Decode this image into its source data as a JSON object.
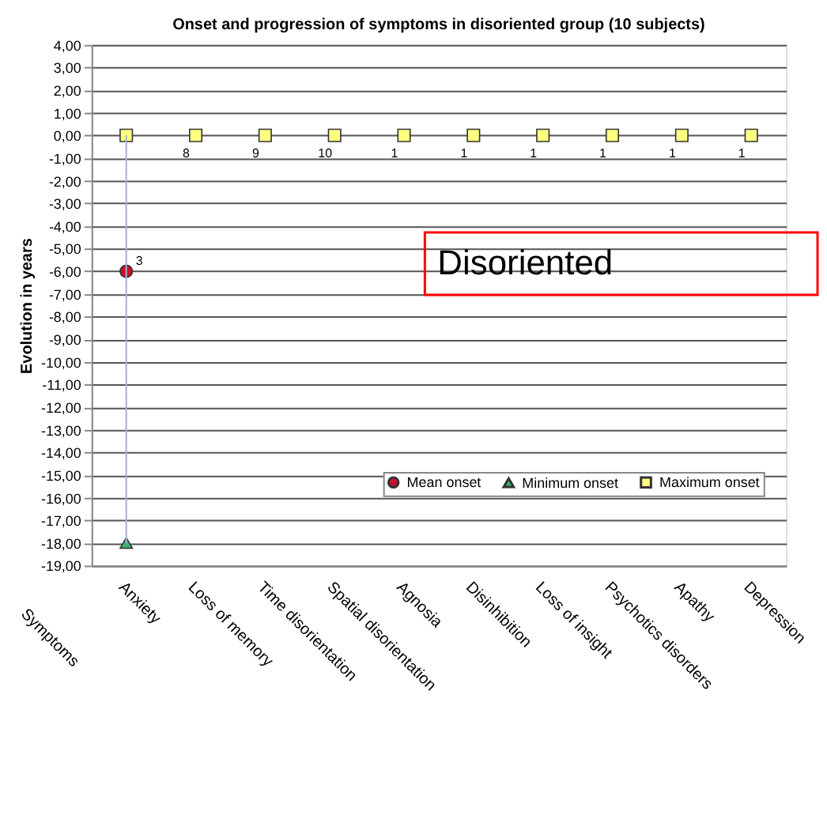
{
  "chart_data": {
    "type": "scatter",
    "title": "Onset and progression of symptoms in disoriented group (10 subjects)",
    "xlabel": "Symptoms",
    "ylabel": "Evolution in years",
    "categories": [
      "Anxiety",
      "Loss of memory",
      "Time disorientation",
      "Spatial disorientation",
      "Agnosia",
      "Disinhibition",
      "Loss of insight",
      "Psychotics disorders",
      "Apathy",
      "Depression"
    ],
    "series": [
      {
        "name": "Mean onset",
        "color": "#c8102e",
        "marker": "circle",
        "values": [
          -6,
          null,
          null,
          null,
          null,
          null,
          null,
          null,
          null,
          null
        ]
      },
      {
        "name": "Minimum onset",
        "color": "#3cb371",
        "marker": "triangle",
        "values": [
          -18,
          null,
          null,
          null,
          null,
          null,
          null,
          null,
          null,
          null
        ]
      },
      {
        "name": "Maximum onset",
        "color": "#ffff80",
        "marker": "square",
        "values": [
          0,
          0,
          0,
          0,
          0,
          0,
          0,
          0,
          0,
          0
        ]
      }
    ],
    "ylim": [
      -19,
      4
    ],
    "yticks": [
      {
        "value": 4,
        "label": "4,00"
      },
      {
        "value": 3,
        "label": "3,00"
      },
      {
        "value": 2,
        "label": "2,00"
      },
      {
        "value": 1,
        "label": "1,00"
      },
      {
        "value": 0,
        "label": "0,00"
      },
      {
        "value": -1,
        "label": "-1,00"
      },
      {
        "value": -2,
        "label": "-2,00"
      },
      {
        "value": -3,
        "label": "-3,00"
      },
      {
        "value": -4,
        "label": "-4,00"
      },
      {
        "value": -5,
        "label": "-5,00"
      },
      {
        "value": -6,
        "label": "-6,00"
      },
      {
        "value": -7,
        "label": "-7,00"
      },
      {
        "value": -8,
        "label": "-8,00"
      },
      {
        "value": -9,
        "label": "-9,00"
      },
      {
        "value": -10,
        "label": "-10,00"
      },
      {
        "value": -11,
        "label": "-11,00"
      },
      {
        "value": -12,
        "label": "-12,00"
      },
      {
        "value": -13,
        "label": "-13,00"
      },
      {
        "value": -14,
        "label": "-14,00"
      },
      {
        "value": -15,
        "label": "-15,00"
      },
      {
        "value": -16,
        "label": "-16,00"
      },
      {
        "value": -17,
        "label": "-17,00"
      },
      {
        "value": -18,
        "label": "-18,00"
      },
      {
        "value": -19,
        "label": "-19,00"
      }
    ],
    "grid": "y",
    "legend": "bottom right",
    "annotations": [
      {
        "text": "3",
        "x": "Anxiety",
        "y": -6
      },
      {
        "text": "8",
        "x": "Loss of memory",
        "y": 0
      },
      {
        "text": "9",
        "x": "Time disorientation",
        "y": 0
      },
      {
        "text": "10",
        "x": "Spatial disorientation",
        "y": 0
      },
      {
        "text": "1",
        "x": "Agnosia",
        "y": 0
      },
      {
        "text": "1",
        "x": "Disinhibition",
        "y": 0
      },
      {
        "text": "1",
        "x": "Loss of insight",
        "y": 0
      },
      {
        "text": "1",
        "x": "Psychotics disorders",
        "y": 0
      },
      {
        "text": "1",
        "x": "Apathy",
        "y": 0
      },
      {
        "text": "1",
        "x": "Depression",
        "y": 0
      },
      "Disoriented"
    ]
  }
}
